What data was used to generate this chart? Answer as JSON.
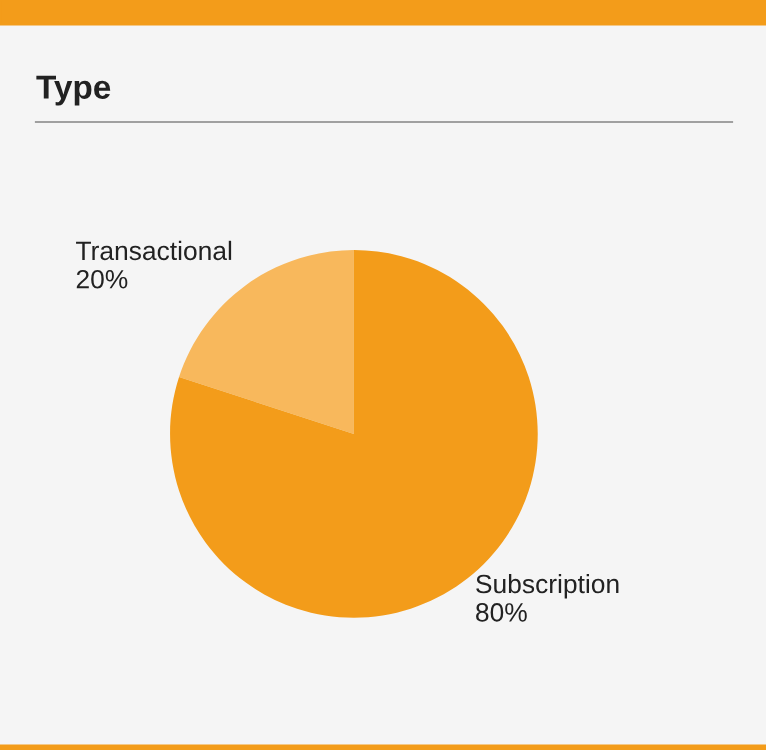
{
  "chart_data": {
    "type": "pie",
    "title": "Type",
    "categories": [
      "Transactional",
      "Subscription"
    ],
    "values": [
      20,
      80
    ],
    "value_labels": [
      "20%",
      "80%"
    ],
    "colors": [
      "#f8b85c",
      "#f39c1a"
    ]
  }
}
